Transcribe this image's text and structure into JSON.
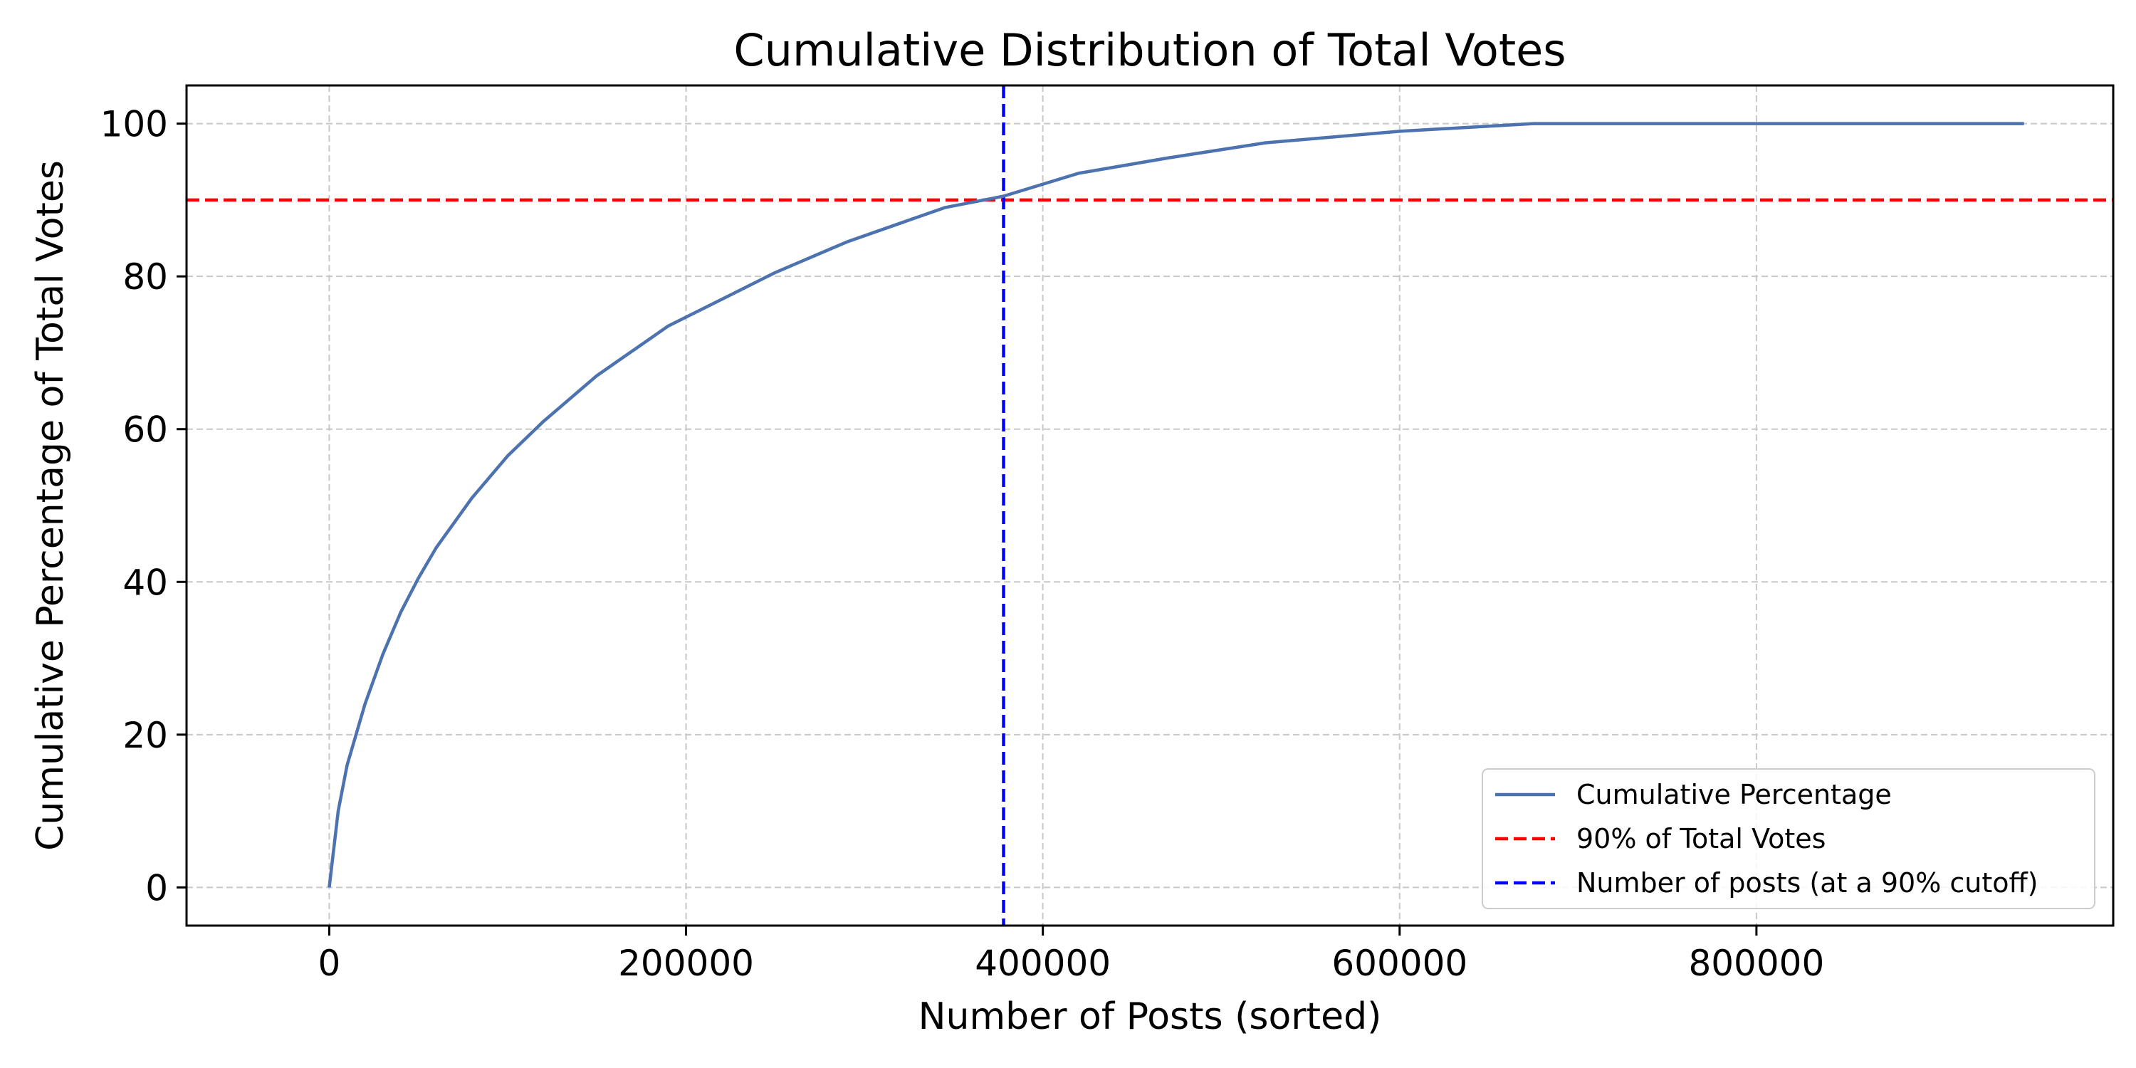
{
  "chart_data": {
    "type": "line",
    "title": "Cumulative Distribution of Total Votes",
    "xlabel": "Number of Posts (sorted)",
    "ylabel": "Cumulative Percentage of Total Votes",
    "xlim": [
      -80000,
      1000000
    ],
    "ylim": [
      -5,
      105
    ],
    "xticks": [
      0,
      200000,
      400000,
      600000,
      800000
    ],
    "yticks": [
      0,
      20,
      40,
      60,
      80,
      100
    ],
    "grid": true,
    "legend_position": "lower-right",
    "series": [
      {
        "name": "Cumulative Percentage",
        "color": "#4c72b0",
        "style": "solid",
        "x": [
          0,
          5000,
          10000,
          20000,
          30000,
          40000,
          50000,
          60000,
          80000,
          100000,
          120000,
          150000,
          190000,
          220000,
          250000,
          290000,
          345000,
          378000,
          420000,
          470000,
          525000,
          600000,
          675000,
          700000,
          800000,
          950000
        ],
        "y": [
          0,
          10,
          16,
          24,
          30.5,
          36,
          40.5,
          44.5,
          51,
          56.5,
          61,
          67,
          73.5,
          77,
          80.5,
          84.5,
          89,
          90.5,
          93.5,
          95.5,
          97.5,
          99,
          100,
          100,
          100,
          100
        ]
      },
      {
        "name": "90% of Total Votes",
        "color": "#ff0000",
        "style": "dashed",
        "orientation": "horizontal",
        "value": 90
      },
      {
        "name": "Number of posts (at a 90% cutoff)",
        "color": "#0000ff",
        "style": "dashed",
        "orientation": "vertical",
        "value": 378000
      }
    ]
  }
}
